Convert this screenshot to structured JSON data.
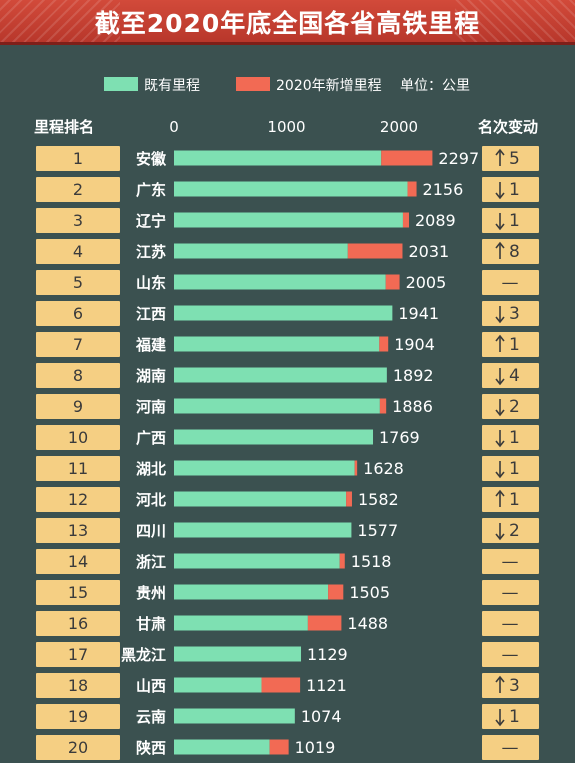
{
  "title": "截至2020年底全国各省高铁里程",
  "legend": {
    "existing": "既有里程",
    "new": "2020年新增里程",
    "unit": "单位：公里"
  },
  "headers": {
    "rank": "里程排名",
    "change": "名次变动"
  },
  "colors": {
    "background": "#3b5150",
    "existing": "#7ee0b2",
    "new": "#f26a54",
    "box": "#f5cf83",
    "title_band": "#c23f31"
  },
  "chart_data": {
    "type": "bar",
    "orientation": "horizontal",
    "stacked": true,
    "title": "截至2020年底全国各省高铁里程",
    "unit": "单位：公里",
    "xlim": [
      0,
      2500
    ],
    "xticks": [
      0,
      1000,
      2000
    ],
    "categories": [
      "安徽",
      "广东",
      "辽宁",
      "江苏",
      "山东",
      "江西",
      "福建",
      "湖南",
      "河南",
      "广西",
      "湖北",
      "河北",
      "四川",
      "浙江",
      "贵州",
      "甘肃",
      "黑龙江",
      "山西",
      "云南",
      "陕西"
    ],
    "ranks": [
      "1",
      "2",
      "3",
      "4",
      "5",
      "6",
      "7",
      "8",
      "9",
      "10",
      "11",
      "12",
      "13",
      "14",
      "15",
      "16",
      "17",
      "18",
      "19",
      "20"
    ],
    "totals": [
      "2297",
      "2156",
      "2089",
      "2031",
      "2005",
      "1941",
      "1904",
      "1892",
      "1886",
      "1769",
      "1628",
      "1582",
      "1577",
      "1518",
      "1505",
      "1488",
      "1129",
      "1121",
      "1074",
      "1019"
    ],
    "series": [
      {
        "name": "既有里程",
        "values": [
          1842,
          2076,
          2035,
          1545,
          1882,
          1941,
          1825,
          1892,
          1830,
          1769,
          1606,
          1530,
          1577,
          1473,
          1370,
          1190,
          1129,
          778,
          1074,
          850
        ]
      },
      {
        "name": "2020年新增里程",
        "values": [
          455,
          80,
          54,
          486,
          123,
          0,
          79,
          0,
          56,
          0,
          22,
          52,
          0,
          45,
          135,
          298,
          0,
          343,
          0,
          169
        ]
      }
    ],
    "rank_change": [
      {
        "dir": "up",
        "n": "5"
      },
      {
        "dir": "down",
        "n": "1"
      },
      {
        "dir": "down",
        "n": "1"
      },
      {
        "dir": "up",
        "n": "8"
      },
      {
        "dir": "same",
        "n": "—"
      },
      {
        "dir": "down",
        "n": "3"
      },
      {
        "dir": "up",
        "n": "1"
      },
      {
        "dir": "down",
        "n": "4"
      },
      {
        "dir": "down",
        "n": "2"
      },
      {
        "dir": "down",
        "n": "1"
      },
      {
        "dir": "down",
        "n": "1"
      },
      {
        "dir": "up",
        "n": "1"
      },
      {
        "dir": "down",
        "n": "2"
      },
      {
        "dir": "same",
        "n": "—"
      },
      {
        "dir": "same",
        "n": "—"
      },
      {
        "dir": "same",
        "n": "—"
      },
      {
        "dir": "same",
        "n": "—"
      },
      {
        "dir": "up",
        "n": "3"
      },
      {
        "dir": "down",
        "n": "1"
      },
      {
        "dir": "same",
        "n": "—"
      }
    ]
  }
}
